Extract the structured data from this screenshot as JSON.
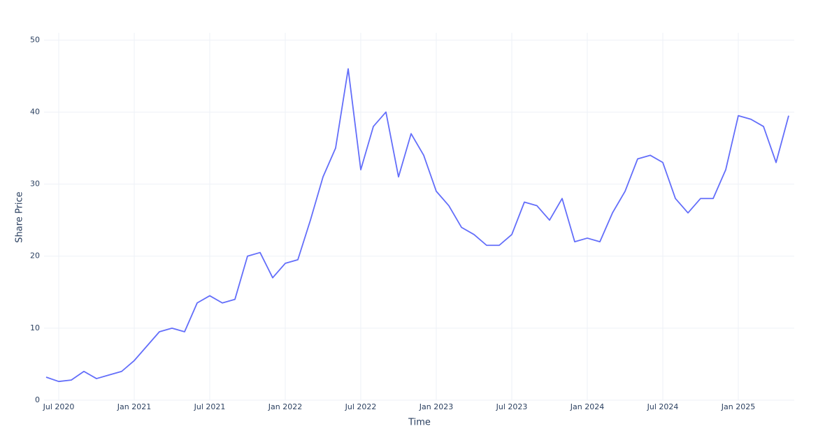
{
  "chart_data": {
    "type": "line",
    "x_title": "Time",
    "y_title": "Share Price",
    "x": [
      "2020-06",
      "2020-07",
      "2020-08",
      "2020-09",
      "2020-10",
      "2020-11",
      "2020-12",
      "2021-01",
      "2021-02",
      "2021-03",
      "2021-04",
      "2021-05",
      "2021-06",
      "2021-07",
      "2021-08",
      "2021-09",
      "2021-10",
      "2021-11",
      "2021-12",
      "2022-01",
      "2022-02",
      "2022-03",
      "2022-04",
      "2022-05",
      "2022-06",
      "2022-07",
      "2022-08",
      "2022-09",
      "2022-10",
      "2022-11",
      "2022-12",
      "2023-01",
      "2023-02",
      "2023-03",
      "2023-04",
      "2023-05",
      "2023-06",
      "2023-07",
      "2023-08",
      "2023-09",
      "2023-10",
      "2023-11",
      "2023-12",
      "2024-01",
      "2024-02",
      "2024-03",
      "2024-04",
      "2024-05",
      "2024-06",
      "2024-07",
      "2024-08",
      "2024-09",
      "2024-10",
      "2024-11",
      "2024-12",
      "2025-01",
      "2025-02",
      "2025-03",
      "2025-04",
      "2025-05"
    ],
    "series": [
      {
        "name": "Share Price",
        "color": "#636efa",
        "values": [
          3.2,
          2.6,
          2.8,
          4.0,
          3.0,
          3.5,
          4.0,
          5.5,
          7.5,
          9.5,
          10.0,
          9.5,
          13.5,
          14.5,
          13.5,
          14.0,
          20.0,
          20.5,
          17.0,
          19.0,
          19.5,
          25.0,
          31.0,
          35.0,
          46.0,
          32.0,
          38.0,
          40.0,
          31.0,
          37.0,
          34.0,
          29.0,
          27.0,
          24.0,
          23.0,
          21.5,
          21.5,
          23.0,
          27.5,
          27.0,
          25.0,
          28.0,
          22.0,
          22.5,
          22.0,
          26.0,
          29.0,
          33.5,
          34.0,
          33.0,
          28.0,
          26.0,
          28.0,
          28.0,
          32.0,
          39.5,
          39.0,
          38.0,
          33.0,
          39.5
        ]
      }
    ],
    "xlim": [
      "2020-06",
      "2025-05"
    ],
    "xticks": [
      {
        "value": "2020-07",
        "label": "Jul 2020"
      },
      {
        "value": "2021-01",
        "label": "Jan 2021"
      },
      {
        "value": "2021-07",
        "label": "Jul 2021"
      },
      {
        "value": "2022-01",
        "label": "Jan 2022"
      },
      {
        "value": "2022-07",
        "label": "Jul 2022"
      },
      {
        "value": "2023-01",
        "label": "Jan 2023"
      },
      {
        "value": "2023-07",
        "label": "Jul 2023"
      },
      {
        "value": "2024-01",
        "label": "Jan 2024"
      },
      {
        "value": "2024-07",
        "label": "Jul 2024"
      },
      {
        "value": "2025-01",
        "label": "Jan 2025"
      }
    ],
    "ylim": [
      0,
      51
    ],
    "yticks": [
      0,
      10,
      20,
      30,
      40,
      50
    ],
    "grid": true
  }
}
